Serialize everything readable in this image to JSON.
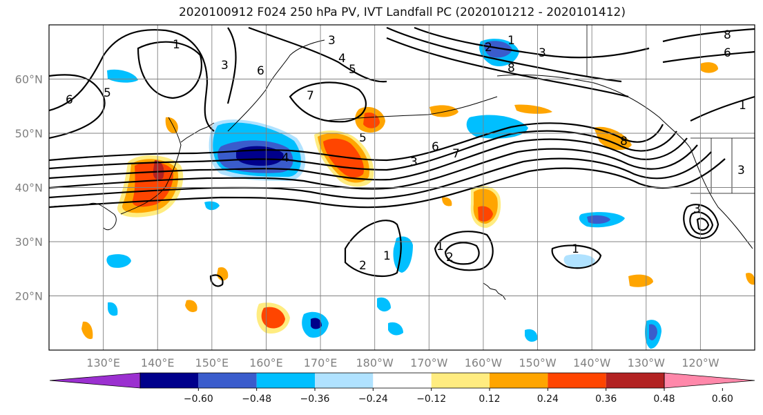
{
  "title": "2020100912 F024 250 hPa PV, IVT Landfall PC (2020101212 - 2020101412)",
  "lat_labels": [
    "60°N",
    "50°N",
    "40°N",
    "30°N",
    "20°N"
  ],
  "lat_values": [
    60,
    50,
    40,
    30,
    20
  ],
  "lon_labels": [
    "130°E",
    "140°E",
    "150°E",
    "160°E",
    "170°E",
    "180°W",
    "170°W",
    "160°W",
    "150°W",
    "140°W",
    "130°W",
    "120°W"
  ],
  "lon_values": [
    130,
    140,
    150,
    160,
    170,
    180,
    190,
    200,
    210,
    220,
    230,
    240
  ],
  "map_extent": {
    "lon_min": 120,
    "lon_max": 250,
    "lat_min": 10,
    "lat_max": 70
  },
  "colorbar": {
    "levels": [
      -0.6,
      -0.48,
      -0.36,
      -0.24,
      -0.12,
      0.12,
      0.24,
      0.36,
      0.48,
      0.6
    ],
    "tick_labels": [
      "−0.60",
      "−0.48",
      "−0.36",
      "−0.24",
      "−0.12",
      "0.12",
      "0.24",
      "0.36",
      "0.48",
      "0.60"
    ],
    "colors": [
      "#9b30d0",
      "#00008b",
      "#3a5ccc",
      "#00bfff",
      "#b0e2ff",
      "#ffffff",
      "#ffec80",
      "#ffa500",
      "#ff4500",
      "#b22222",
      "#ff88aa"
    ]
  },
  "contour_labels": [
    "1",
    "2",
    "3",
    "4",
    "5",
    "6",
    "7",
    "8"
  ]
}
